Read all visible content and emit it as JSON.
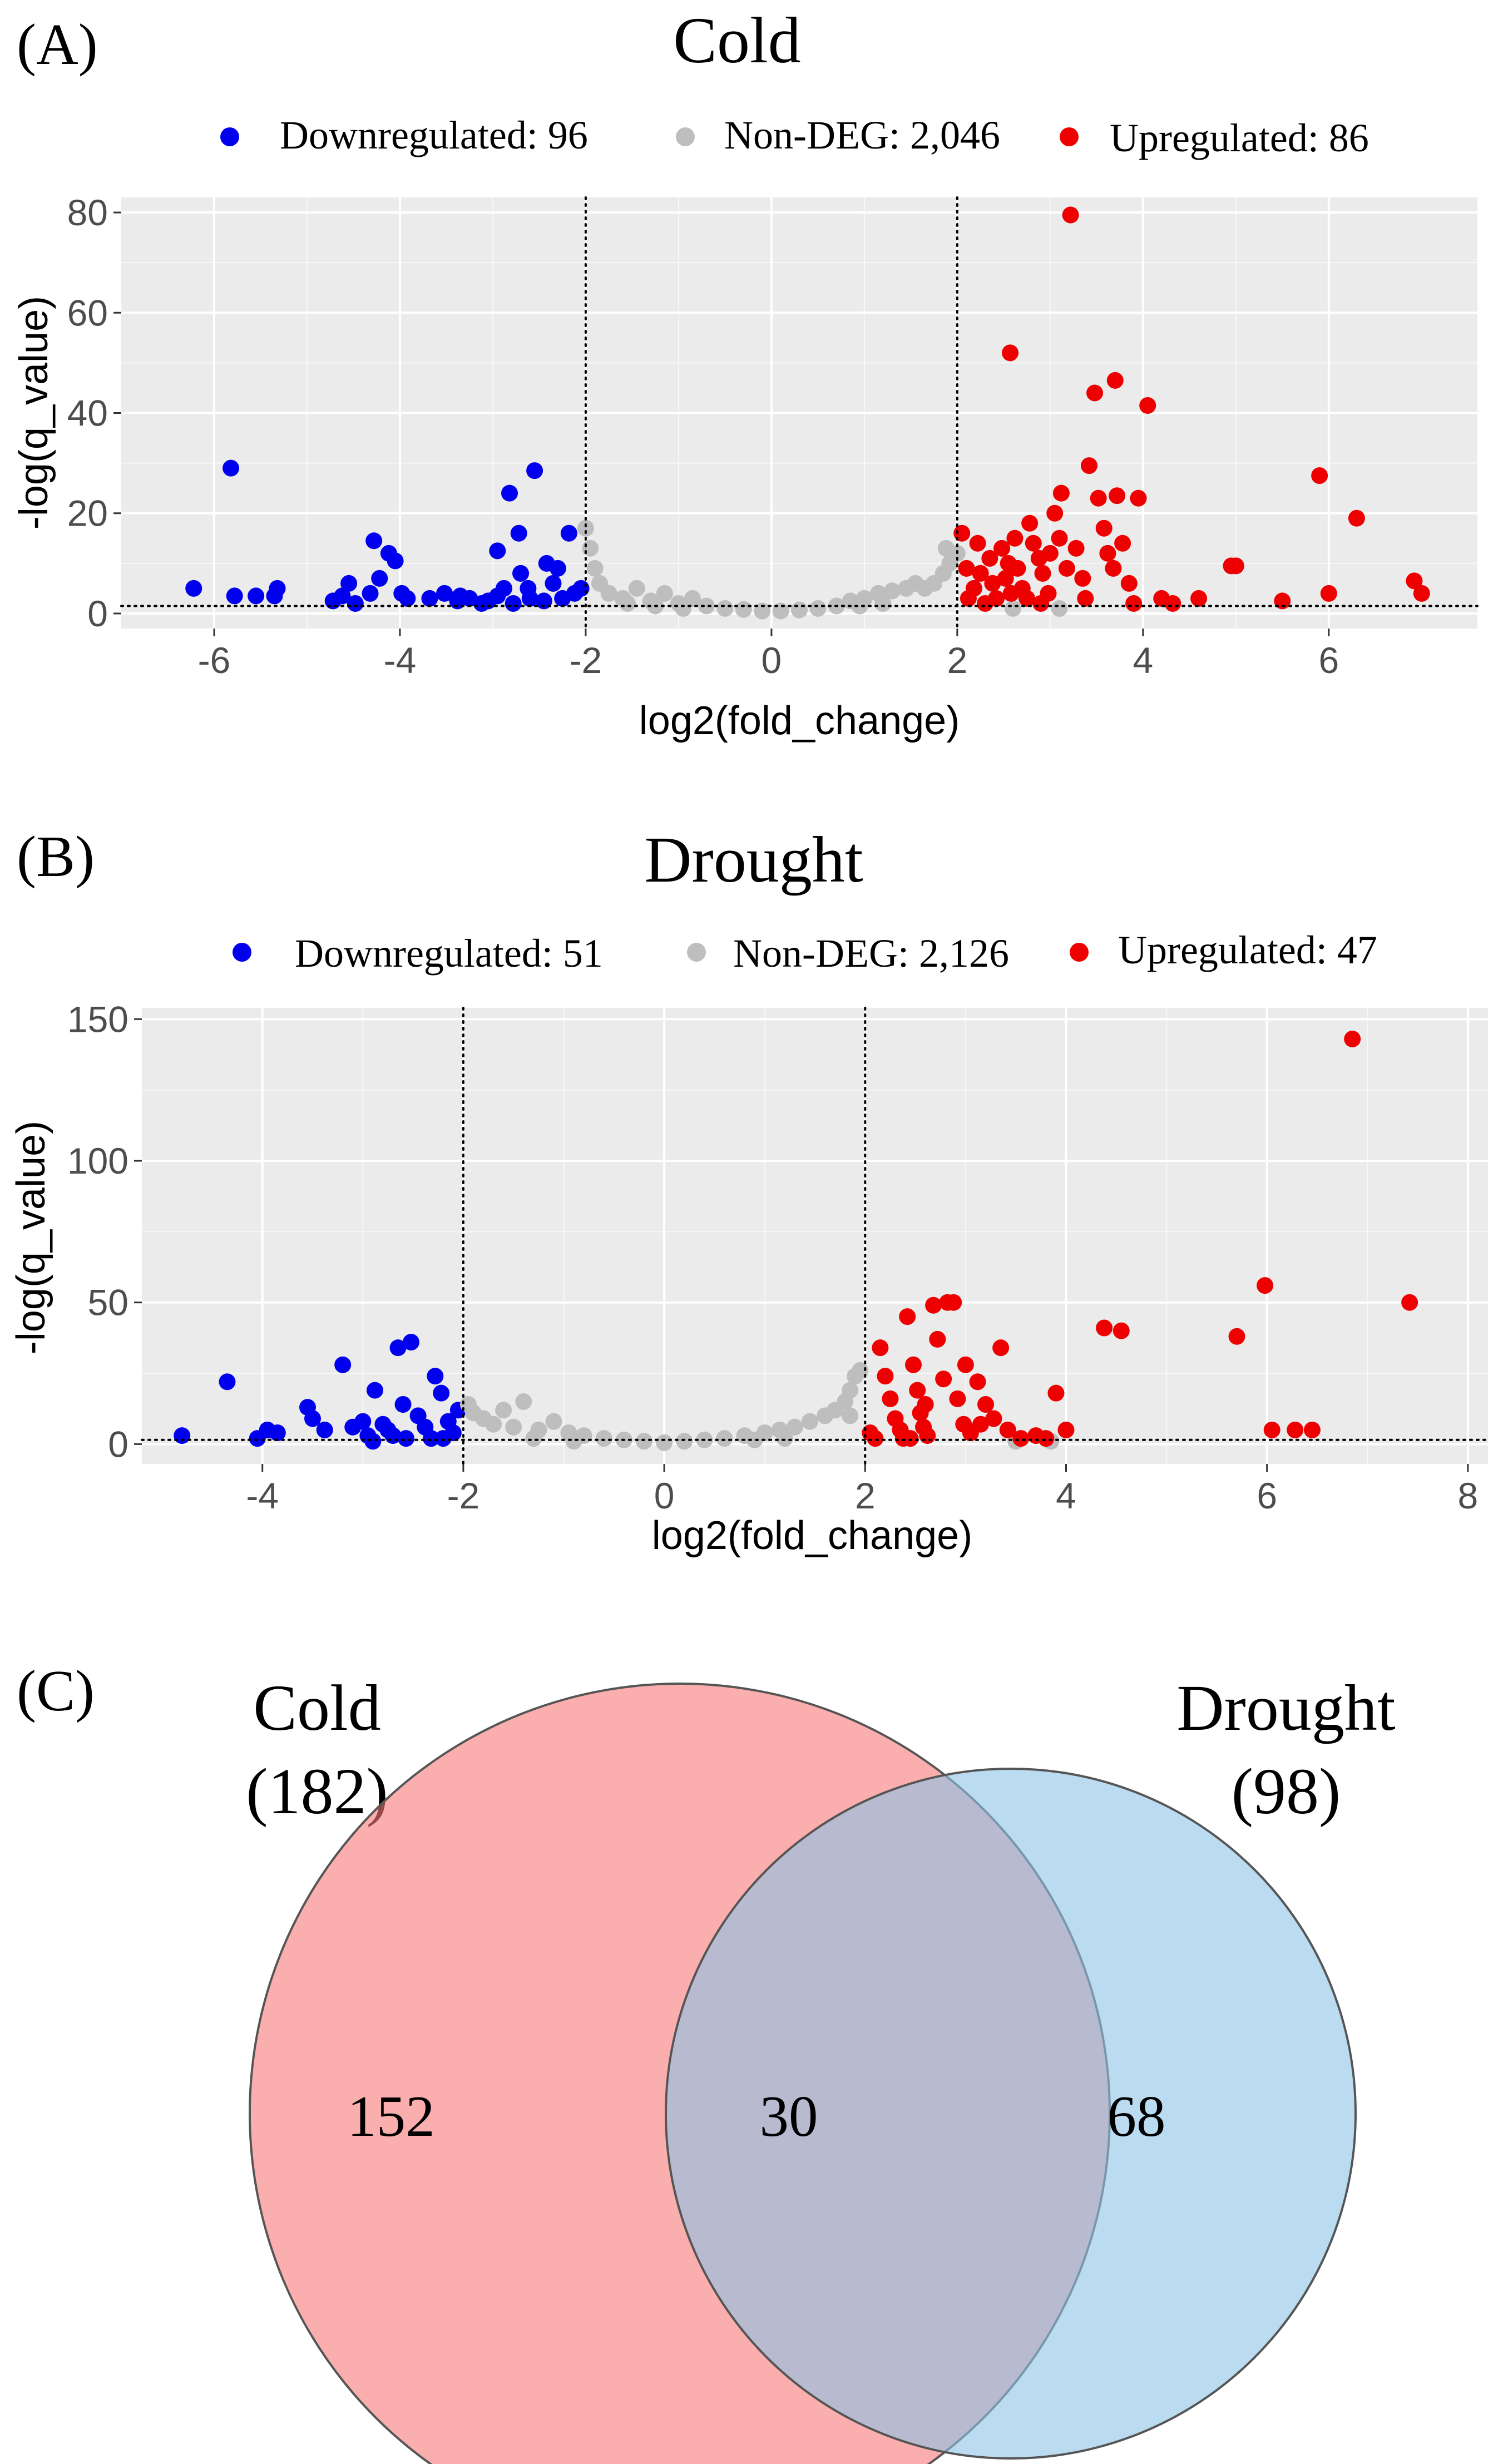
{
  "panels": {
    "A": {
      "letter": "(A)",
      "title": "Cold",
      "legend": {
        "down": "Downregulated: 96",
        "non": "Non-DEG: 2,046",
        "up": "Upregulated: 86"
      },
      "xlabel": "log2(fold_change)",
      "ylabel": "-log(q_value)"
    },
    "B": {
      "letter": "(B)",
      "title": "Drought",
      "legend": {
        "down": "Downregulated: 51",
        "non": "Non-DEG: 2,126",
        "up": "Upregulated: 47"
      },
      "xlabel": "log2(fold_change)",
      "ylabel": "-log(q_value)"
    },
    "C": {
      "letter": "(C)",
      "cold_name": "Cold",
      "cold_total": "(182)",
      "drought_name": "Drought",
      "drought_total": "(98)",
      "cold_only": "152",
      "overlap": "30",
      "drought_only": "68"
    }
  },
  "colors": {
    "down": "#0000ee",
    "non": "#bebebe",
    "up": "#ee0000",
    "panel_bg": "#ebebeb",
    "grid": "#ffffff",
    "venn_cold": "#f87878",
    "venn_drought": "#8cc3e6"
  },
  "chart_data": [
    {
      "type": "scatter",
      "title": "Cold",
      "xlabel": "log2(fold_change)",
      "ylabel": "-log(q_value)",
      "xlim": [
        -7,
        7.6
      ],
      "ylim": [
        -3,
        83
      ],
      "xticks": [
        -6,
        -4,
        -2,
        0,
        2,
        4,
        6
      ],
      "yticks": [
        0,
        20,
        40,
        60,
        80
      ],
      "thresholds": {
        "fc": [
          -2,
          2
        ],
        "q": 1.5
      },
      "series": [
        {
          "name": "Downregulated",
          "color": "down",
          "points": [
            [
              -6.22,
              5
            ],
            [
              -5.82,
              29
            ],
            [
              -5.78,
              3.5
            ],
            [
              -5.55,
              3.5
            ],
            [
              -5.35,
              3.5
            ],
            [
              -5.32,
              5
            ],
            [
              -4.72,
              2.5
            ],
            [
              -4.62,
              3.5
            ],
            [
              -4.55,
              6
            ],
            [
              -4.48,
              2
            ],
            [
              -4.32,
              4
            ],
            [
              -4.28,
              14.5
            ],
            [
              -4.22,
              7
            ],
            [
              -4.12,
              12
            ],
            [
              -4.05,
              10.5
            ],
            [
              -3.98,
              4
            ],
            [
              -3.92,
              3
            ],
            [
              -3.68,
              3
            ],
            [
              -3.52,
              4
            ],
            [
              -3.38,
              2.5
            ],
            [
              -3.25,
              3
            ],
            [
              -3.12,
              2
            ],
            [
              -2.95,
              3.5
            ],
            [
              -2.95,
              12.5
            ],
            [
              -2.88,
              5
            ],
            [
              -2.82,
              24
            ],
            [
              -2.78,
              2
            ],
            [
              -2.72,
              16
            ],
            [
              -2.62,
              5
            ],
            [
              -2.55,
              28.5
            ],
            [
              -2.45,
              2.5
            ],
            [
              -2.42,
              10
            ],
            [
              -2.35,
              6
            ],
            [
              -2.25,
              3
            ],
            [
              -2.18,
              16
            ],
            [
              -2.12,
              4
            ],
            [
              -2.05,
              5
            ],
            [
              -2.6,
              3
            ],
            [
              -3.35,
              3.5
            ],
            [
              -2.7,
              8
            ],
            [
              -3.05,
              2.5
            ],
            [
              -2.3,
              9
            ]
          ]
        },
        {
          "name": "Non-DEG",
          "color": "non",
          "points": [
            [
              -2.0,
              17
            ],
            [
              -1.95,
              13
            ],
            [
              -1.9,
              9
            ],
            [
              -1.85,
              6
            ],
            [
              -1.75,
              4
            ],
            [
              -1.6,
              3
            ],
            [
              -1.45,
              5
            ],
            [
              -1.3,
              2.5
            ],
            [
              -1.15,
              4
            ],
            [
              -1.0,
              2
            ],
            [
              -0.85,
              3
            ],
            [
              -0.7,
              1.5
            ],
            [
              -0.5,
              1
            ],
            [
              -0.3,
              0.8
            ],
            [
              -0.1,
              0.5
            ],
            [
              0.1,
              0.5
            ],
            [
              0.3,
              0.7
            ],
            [
              0.5,
              1
            ],
            [
              0.7,
              1.5
            ],
            [
              0.85,
              2.5
            ],
            [
              1.0,
              3
            ],
            [
              1.15,
              4
            ],
            [
              1.3,
              4.5
            ],
            [
              1.45,
              5
            ],
            [
              1.55,
              6
            ],
            [
              1.65,
              5
            ],
            [
              1.75,
              6
            ],
            [
              1.85,
              8
            ],
            [
              1.92,
              10
            ],
            [
              2.0,
              12
            ],
            [
              1.88,
              13
            ],
            [
              -1.55,
              2
            ],
            [
              -1.25,
              1.5
            ],
            [
              1.2,
              2
            ],
            [
              0.95,
              1.5
            ],
            [
              -0.95,
              1
            ],
            [
              2.6,
              1
            ],
            [
              3.1,
              1
            ]
          ]
        },
        {
          "name": "Upregulated",
          "color": "up",
          "points": [
            [
              2.05,
              16
            ],
            [
              2.1,
              9
            ],
            [
              2.12,
              3
            ],
            [
              2.18,
              5
            ],
            [
              2.22,
              14
            ],
            [
              2.25,
              8
            ],
            [
              2.3,
              2
            ],
            [
              2.35,
              11
            ],
            [
              2.38,
              6
            ],
            [
              2.42,
              3
            ],
            [
              2.48,
              13
            ],
            [
              2.52,
              7
            ],
            [
              2.55,
              10
            ],
            [
              2.58,
              4
            ],
            [
              2.62,
              15
            ],
            [
              2.65,
              9
            ],
            [
              2.7,
              5
            ],
            [
              2.75,
              3
            ],
            [
              2.78,
              18
            ],
            [
              2.82,
              14
            ],
            [
              2.88,
              11
            ],
            [
              2.92,
              8
            ],
            [
              2.98,
              4
            ],
            [
              3.05,
              20
            ],
            [
              3.1,
              15
            ],
            [
              3.12,
              24
            ],
            [
              3.18,
              9
            ],
            [
              3.22,
              79.5
            ],
            [
              3.28,
              13
            ],
            [
              3.35,
              7
            ],
            [
              3.38,
              3
            ],
            [
              3.42,
              29.5
            ],
            [
              3.48,
              44
            ],
            [
              3.52,
              23
            ],
            [
              3.58,
              17
            ],
            [
              3.62,
              12
            ],
            [
              3.68,
              9
            ],
            [
              3.72,
              23.5
            ],
            [
              3.7,
              46.5
            ],
            [
              3.78,
              14
            ],
            [
              3.85,
              6
            ],
            [
              3.9,
              2
            ],
            [
              3.95,
              23
            ],
            [
              4.05,
              41.5
            ],
            [
              4.2,
              3
            ],
            [
              4.32,
              2
            ],
            [
              4.6,
              3
            ],
            [
              4.95,
              9.5
            ],
            [
              5.0,
              9.5
            ],
            [
              5.5,
              2.5
            ],
            [
              5.9,
              27.5
            ],
            [
              6.0,
              4
            ],
            [
              6.3,
              19
            ],
            [
              6.92,
              6.5
            ],
            [
              7.0,
              4
            ],
            [
              2.57,
              52
            ],
            [
              3.0,
              12
            ],
            [
              2.9,
              2
            ]
          ]
        }
      ]
    },
    {
      "type": "scatter",
      "title": "Drought",
      "xlabel": "log2(fold_change)",
      "ylabel": "-log(q_value)",
      "xlim": [
        -5.2,
        8.2
      ],
      "ylim": [
        -7,
        154
      ],
      "xticks": [
        -4,
        -2,
        0,
        2,
        4,
        6,
        8
      ],
      "yticks": [
        0,
        50,
        100,
        150
      ],
      "thresholds": {
        "fc": [
          -2,
          2
        ],
        "q": 1.5
      },
      "series": [
        {
          "name": "Downregulated",
          "color": "down",
          "points": [
            [
              -4.8,
              3
            ],
            [
              -4.35,
              22
            ],
            [
              -4.05,
              2
            ],
            [
              -3.95,
              5
            ],
            [
              -3.85,
              4
            ],
            [
              -3.55,
              13
            ],
            [
              -3.5,
              9
            ],
            [
              -3.38,
              5
            ],
            [
              -3.2,
              28
            ],
            [
              -3.0,
              8
            ],
            [
              -2.95,
              3
            ],
            [
              -2.88,
              19
            ],
            [
              -2.8,
              7
            ],
            [
              -2.75,
              5
            ],
            [
              -2.7,
              3
            ],
            [
              -2.65,
              34
            ],
            [
              -2.6,
              14
            ],
            [
              -2.52,
              36
            ],
            [
              -2.45,
              10
            ],
            [
              -2.38,
              6
            ],
            [
              -2.32,
              2
            ],
            [
              -2.28,
              24
            ],
            [
              -2.22,
              18
            ],
            [
              -2.15,
              8
            ],
            [
              -2.1,
              4
            ],
            [
              -2.05,
              12
            ],
            [
              -2.2,
              2
            ],
            [
              -2.9,
              1
            ],
            [
              -3.1,
              6
            ],
            [
              -2.57,
              2
            ]
          ]
        },
        {
          "name": "Non-DEG",
          "color": "non",
          "points": [
            [
              -1.95,
              14
            ],
            [
              -1.9,
              11
            ],
            [
              -1.8,
              9
            ],
            [
              -1.7,
              7
            ],
            [
              -1.6,
              12
            ],
            [
              -1.5,
              6
            ],
            [
              -1.4,
              15
            ],
            [
              -1.25,
              5
            ],
            [
              -1.1,
              8
            ],
            [
              -0.95,
              4
            ],
            [
              -0.8,
              3
            ],
            [
              -0.6,
              2
            ],
            [
              -0.4,
              1.5
            ],
            [
              -0.2,
              1
            ],
            [
              0,
              0.5
            ],
            [
              0.2,
              1
            ],
            [
              0.4,
              1.5
            ],
            [
              0.6,
              2
            ],
            [
              0.8,
              3
            ],
            [
              1.0,
              4
            ],
            [
              1.15,
              5
            ],
            [
              1.3,
              6
            ],
            [
              1.45,
              8
            ],
            [
              1.6,
              10
            ],
            [
              1.7,
              12
            ],
            [
              1.8,
              15
            ],
            [
              1.85,
              19
            ],
            [
              1.9,
              24
            ],
            [
              1.95,
              26
            ],
            [
              1.85,
              10
            ],
            [
              -1.3,
              2
            ],
            [
              1.2,
              2
            ],
            [
              3.5,
              1
            ],
            [
              3.85,
              1
            ],
            [
              -0.9,
              1
            ],
            [
              0.9,
              1.5
            ]
          ]
        },
        {
          "name": "Upregulated",
          "color": "up",
          "points": [
            [
              2.05,
              4
            ],
            [
              2.1,
              2
            ],
            [
              2.15,
              34
            ],
            [
              2.2,
              24
            ],
            [
              2.25,
              16
            ],
            [
              2.3,
              9
            ],
            [
              2.35,
              5
            ],
            [
              2.38,
              2
            ],
            [
              2.42,
              45
            ],
            [
              2.48,
              28
            ],
            [
              2.52,
              19
            ],
            [
              2.55,
              11
            ],
            [
              2.58,
              6
            ],
            [
              2.62,
              3
            ],
            [
              2.68,
              49
            ],
            [
              2.72,
              37
            ],
            [
              2.78,
              23
            ],
            [
              2.82,
              50
            ],
            [
              2.88,
              50
            ],
            [
              2.92,
              16
            ],
            [
              2.98,
              7
            ],
            [
              3.05,
              4
            ],
            [
              3.12,
              22
            ],
            [
              3.2,
              14
            ],
            [
              3.28,
              9
            ],
            [
              3.35,
              34
            ],
            [
              3.42,
              5
            ],
            [
              3.55,
              2
            ],
            [
              3.7,
              3
            ],
            [
              3.9,
              18
            ],
            [
              4.0,
              5
            ],
            [
              4.38,
              41
            ],
            [
              4.55,
              40
            ],
            [
              5.7,
              38
            ],
            [
              5.98,
              56
            ],
            [
              6.05,
              5
            ],
            [
              6.28,
              5
            ],
            [
              6.45,
              5
            ],
            [
              6.85,
              143
            ],
            [
              7.42,
              50
            ],
            [
              2.6,
              14
            ],
            [
              3.0,
              28
            ],
            [
              3.15,
              7
            ],
            [
              2.45,
              2
            ],
            [
              3.8,
              2
            ]
          ]
        }
      ]
    },
    {
      "type": "venn",
      "sets": [
        {
          "name": "Cold",
          "size": 182,
          "unique": 152
        },
        {
          "name": "Drought",
          "size": 98,
          "unique": 68
        }
      ],
      "intersection": 30
    }
  ]
}
